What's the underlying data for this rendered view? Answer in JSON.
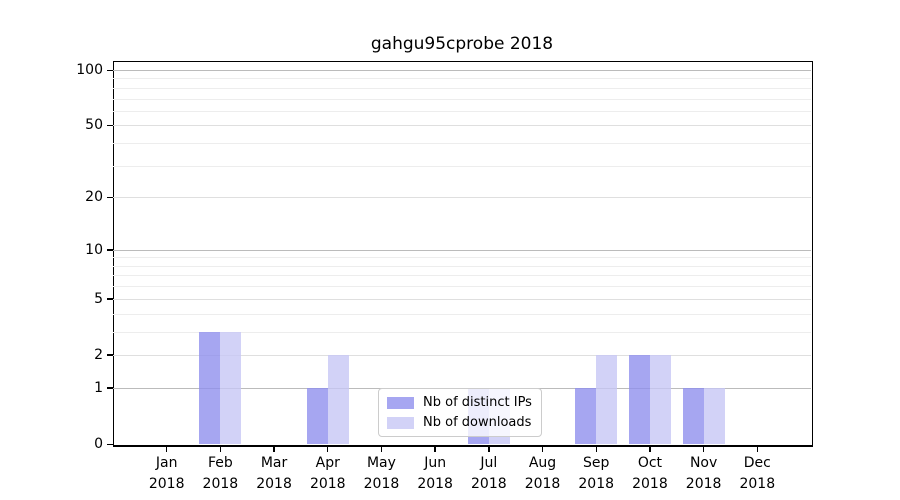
{
  "title": "gahgu95cprobe 2018",
  "colors": {
    "distinct_ips_bar": "rgba(144,144,238,0.8)",
    "downloads_bar": "rgba(199,199,245,0.8)",
    "grid_decade": "#bbbbbb",
    "grid_major": "#dfdfdf",
    "grid_minor": "#ededed",
    "axis": "#000000"
  },
  "legend": {
    "items": [
      {
        "label": "Nb of distinct IPs",
        "color": "rgba(144,144,238,0.8)"
      },
      {
        "label": "Nb of downloads",
        "color": "rgba(199,199,245,0.8)"
      }
    ]
  },
  "chart_data": {
    "type": "bar",
    "title": "gahgu95cprobe 2018",
    "months": [
      "Jan",
      "Feb",
      "Mar",
      "Apr",
      "May",
      "Jun",
      "Jul",
      "Aug",
      "Sep",
      "Oct",
      "Nov",
      "Dec"
    ],
    "year": "2018",
    "categories": [
      "Jan 2018",
      "Feb 2018",
      "Mar 2018",
      "Apr 2018",
      "May 2018",
      "Jun 2018",
      "Jul 2018",
      "Aug 2018",
      "Sep 2018",
      "Oct 2018",
      "Nov 2018",
      "Dec 2018"
    ],
    "series": [
      {
        "name": "Nb of distinct IPs",
        "values": [
          0,
          3,
          0,
          1,
          0,
          0,
          1,
          0,
          1,
          2,
          1,
          0
        ]
      },
      {
        "name": "Nb of downloads",
        "values": [
          0,
          3,
          0,
          2,
          0,
          0,
          1,
          0,
          2,
          2,
          1,
          0
        ]
      }
    ],
    "y_scale": "log10(value+1)",
    "y_ticks": [
      0,
      1,
      2,
      5,
      10,
      20,
      50,
      100
    ],
    "y_decade_ticks": [
      1,
      10,
      100
    ],
    "y_minor_ticks": [
      3,
      4,
      6,
      7,
      8,
      9,
      30,
      40,
      60,
      70,
      80,
      90
    ],
    "ylim": [
      0,
      110
    ],
    "grid": "on",
    "legend_position": "lower center-right"
  }
}
